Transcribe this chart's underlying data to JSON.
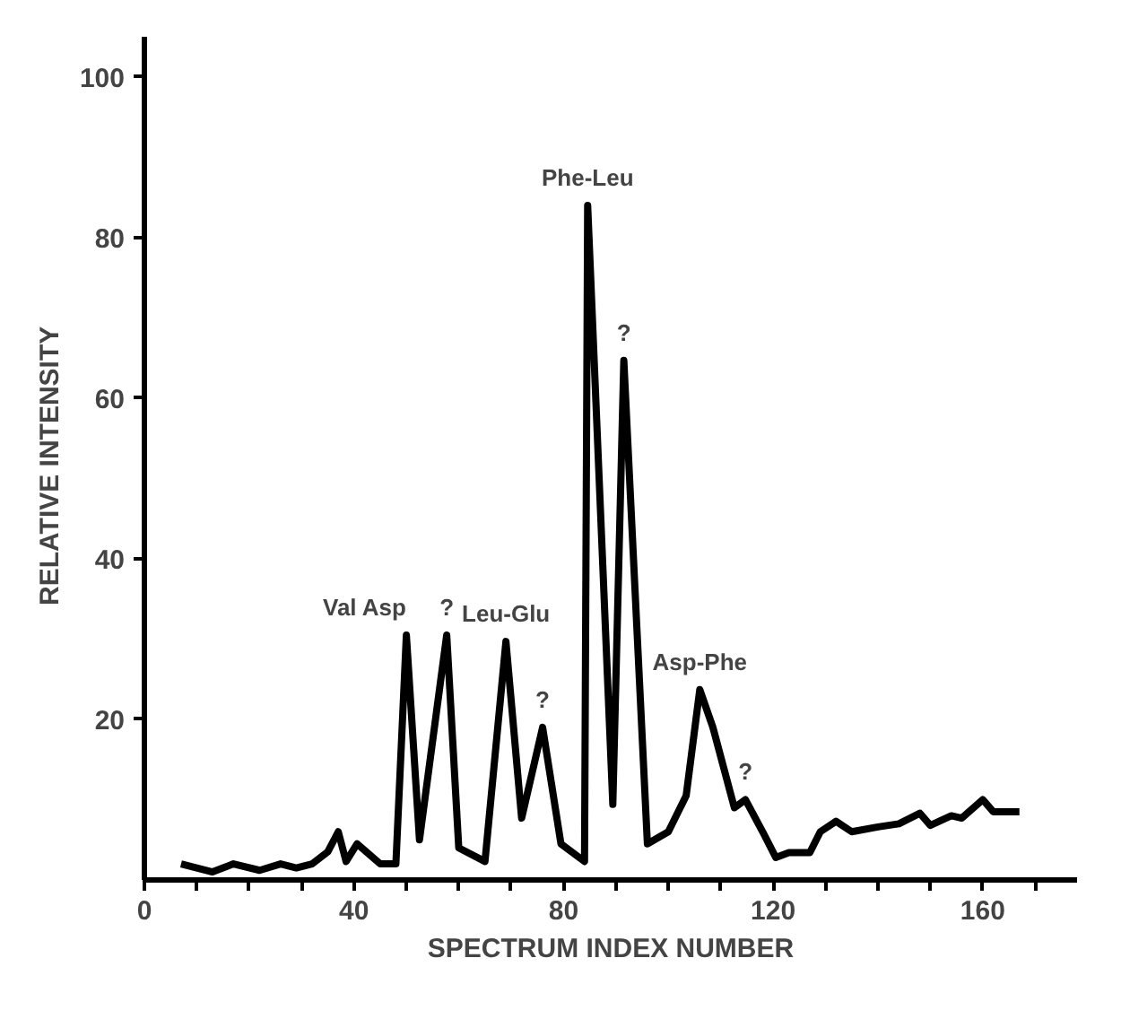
{
  "chart_data": {
    "type": "line",
    "xlabel": "SPECTRUM INDEX NUMBER",
    "ylabel": "RELATIVE   INTENSITY",
    "x": [
      7,
      13,
      17,
      22,
      26,
      29,
      32,
      35,
      37,
      38.5,
      40.6,
      45,
      48,
      50,
      52.5,
      57.7,
      60,
      65,
      69,
      72,
      76,
      79.5,
      84,
      84.6,
      89.4,
      91.5,
      96,
      100,
      103.4,
      106,
      108.5,
      112.6,
      114.7,
      118,
      120.5,
      123,
      127,
      129,
      132,
      135,
      140,
      144,
      148,
      150,
      154,
      156,
      160,
      162,
      167
    ],
    "series": [
      {
        "color": "#000000",
        "values": [
          2,
          1,
          2,
          1.2,
          2,
          1.5,
          2,
          3.5,
          6,
          2.3,
          4.5,
          2,
          2,
          30.5,
          5,
          30.5,
          4,
          2.3,
          29.7,
          7.7,
          19,
          4.5,
          2.3,
          84,
          9.4,
          64.7,
          4.5,
          6,
          10.5,
          23.7,
          19,
          9,
          10,
          6,
          2.8,
          3.4,
          3.4,
          6,
          7.3,
          6,
          6.6,
          7,
          8.3,
          6.8,
          8,
          7.7,
          10,
          8.5,
          8.5
        ]
      }
    ],
    "xlim": [
      0,
      178
    ],
    "ylim": [
      0,
      105
    ],
    "xticks": [
      0,
      {
        "value": 10,
        "label": null
      },
      {
        "value": 20,
        "label": null
      },
      {
        "value": 30,
        "label": null
      },
      40,
      {
        "value": 50,
        "label": null
      },
      {
        "value": 60,
        "label": null
      },
      {
        "value": 70,
        "label": null
      },
      80,
      {
        "value": 90,
        "label": null
      },
      {
        "value": 100,
        "label": null
      },
      {
        "value": 110,
        "label": null
      },
      120,
      {
        "value": 130,
        "label": null
      },
      {
        "value": 140,
        "label": null
      },
      {
        "value": 150,
        "label": null
      },
      160,
      {
        "value": 170,
        "label": null
      }
    ],
    "yticks": [
      20,
      40,
      60,
      80,
      100
    ],
    "grid": false,
    "marker": "none",
    "line_style": "solid",
    "annotations": [
      {
        "text": "Val  Asp",
        "x": 50,
        "y": 30.5
      },
      {
        "text": "?",
        "x": 57.7,
        "y": 30.5
      },
      {
        "text": "Leu-Glu",
        "x": 69,
        "y": 29.7
      },
      {
        "text": "?",
        "x": 76,
        "y": 19
      },
      {
        "text": "Phe-Leu",
        "x": 84.6,
        "y": 84
      },
      {
        "text": "?",
        "x": 91.5,
        "y": 64.7
      },
      {
        "text": "Asp-Phe",
        "x": 106,
        "y": 23.7
      },
      {
        "text": "?",
        "x": 114.7,
        "y": 10
      }
    ]
  }
}
